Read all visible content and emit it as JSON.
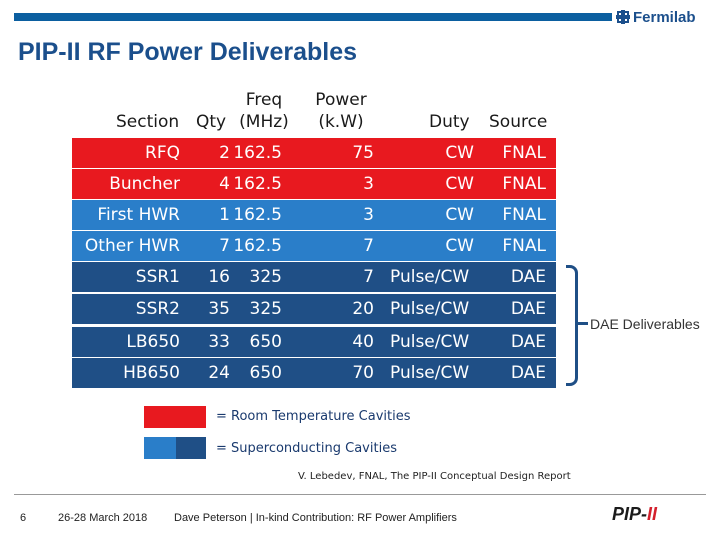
{
  "header": {
    "logo_text": "Fermilab",
    "title": "PIP-II RF Power Deliverables"
  },
  "table": {
    "headers": {
      "section": "Section",
      "qty": "Qty",
      "freq": "Freq (MHz)",
      "freq_line1": "Freq",
      "freq_line2": "(MHz)",
      "power_line1": "Power",
      "power_line2": "(k.W)",
      "duty": "Duty",
      "source": "Source"
    },
    "rows": [
      {
        "section": "RFQ",
        "qty": "2",
        "freq": "162.5",
        "power": "75",
        "duty": "CW",
        "source": "FNAL"
      },
      {
        "section": "Buncher",
        "qty": "4",
        "freq": "162.5",
        "power": "3",
        "duty": "CW",
        "source": "FNAL"
      },
      {
        "section": "First HWR",
        "qty": "1",
        "freq": "162.5",
        "power": "3",
        "duty": "CW",
        "source": "FNAL"
      },
      {
        "section": "Other HWR",
        "qty": "7",
        "freq": "162.5",
        "power": "7",
        "duty": "CW",
        "source": "FNAL"
      },
      {
        "section": "SSR1",
        "qty": "16",
        "freq": "325",
        "power": "7",
        "duty": "Pulse/CW",
        "source": "DAE"
      },
      {
        "section": "SSR2",
        "qty": "35",
        "freq": "325",
        "power": "20",
        "duty": "Pulse/CW",
        "source": "DAE"
      },
      {
        "section": "LB650",
        "qty": "33",
        "freq": "650",
        "power": "40",
        "duty": "Pulse/CW",
        "source": "DAE"
      },
      {
        "section": "HB650",
        "qty": "24",
        "freq": "650",
        "power": "70",
        "duty": "Pulse/CW",
        "source": "DAE"
      }
    ]
  },
  "annotation": {
    "dae_deliverables": "DAE Deliverables"
  },
  "legend": {
    "room_temp": "= Room Temperature Cavities",
    "superconducting": "= Superconducting Cavities"
  },
  "citation": "V. Lebedev, FNAL, The PIP-II Conceptual Design Report",
  "footer": {
    "page_number": "6",
    "date": "26-28 March 2018",
    "presenter": "Dave Peterson | In-kind Contribution:  RF Power Amplifiers",
    "pip_logo_main": "PIP-",
    "pip_logo_accent": "II"
  },
  "colors": {
    "room_temp": "#e8191f",
    "superconducting_dark": "#1f4f86",
    "superconducting_light": "#2a7ec9"
  }
}
